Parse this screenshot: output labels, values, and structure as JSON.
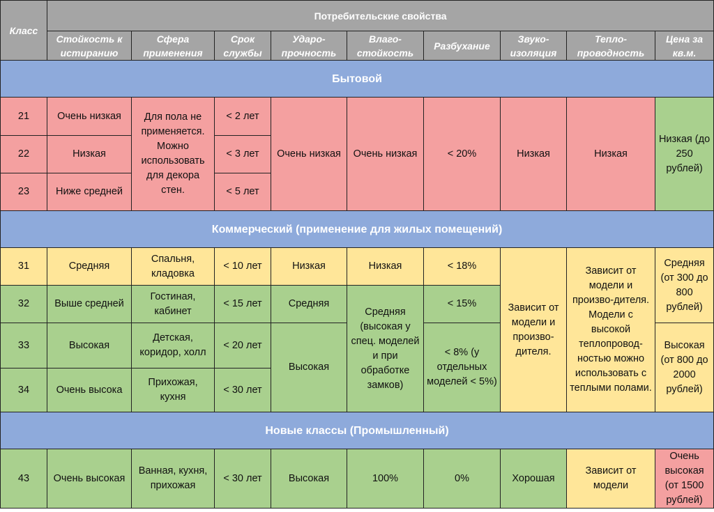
{
  "colors": {
    "header": "#a5a5a5",
    "section": "#8eaadb",
    "low": "#f4a0a0",
    "medium": "#ffe699",
    "high": "#a9d08e"
  },
  "header": {
    "class": "Класс",
    "group": "Потребительские свойства",
    "cols": [
      "Стойкость к истиранию",
      "Сфера применения",
      "Срок службы",
      "Ударо-прочность",
      "Влаго-стойкость",
      "Разбухание",
      "Звуко-изоляция",
      "Тепло-проводность",
      "Цена за кв.м."
    ]
  },
  "sections": [
    {
      "title": "Бытовой",
      "rows": [
        {
          "class": "21",
          "wear": "Очень низкая",
          "life": "< 2 лет"
        },
        {
          "class": "22",
          "wear": "Низкая",
          "life": "< 3 лет"
        },
        {
          "class": "23",
          "wear": "Ниже средней",
          "life": "< 5 лет"
        }
      ],
      "use": "Для пола не применяется. Можно использовать для декора стен.",
      "impact": "Очень низкая",
      "moisture": "Очень низкая",
      "swelling": "< 20%",
      "sound": "Низкая",
      "heat": "Низкая",
      "price": "Низкая (до 250 рублей)"
    },
    {
      "title": "Коммерческий (применение для жилых помещений)",
      "rows": [
        {
          "class": "31",
          "wear": "Средняя",
          "use": "Спальня, кладовка",
          "life": "< 10 лет",
          "impact": "Низкая",
          "moisture": "Низкая",
          "swelling": "< 18%"
        },
        {
          "class": "32",
          "wear": "Выше средней",
          "use": "Гостиная, кабинет",
          "life": "< 15 лет",
          "impact": "Средняя",
          "swelling": "< 15%"
        },
        {
          "class": "33",
          "wear": "Высокая",
          "use": "Детская, коридор, холл",
          "life": "< 20 лет"
        },
        {
          "class": "34",
          "wear": "Очень высока",
          "use": "Прихожая, кухня",
          "life": "< 30 лет"
        }
      ],
      "impact_high": "Высокая",
      "moisture_mid": "Средняя (высокая у спец. моделей и при обработке замков)",
      "swelling_low": "< 8% (у отдельных моделей < 5%)",
      "sound": "Зависит от модели и произво-дителя.",
      "heat": "Зависит от модели и произво-дителя. Модели с высокой теплопровод-ностью можно использовать с теплыми полами.",
      "price_mid": "Средняя (от 300 до 800 рублей)",
      "price_high": "Высокая (от 800 до 2000 рублей)"
    },
    {
      "title": "Новые классы (Промышленный)",
      "rows": [
        {
          "class": "43",
          "wear": "Очень высокая",
          "use": "Ванная, кухня, прихожая",
          "life": "< 30 лет",
          "impact": "Высокая",
          "moisture": "100%",
          "swelling": "0%",
          "sound": "Хорошая",
          "heat": "Зависит от модели",
          "price": "Очень высокая (от 1500 рублей)"
        }
      ]
    }
  ]
}
